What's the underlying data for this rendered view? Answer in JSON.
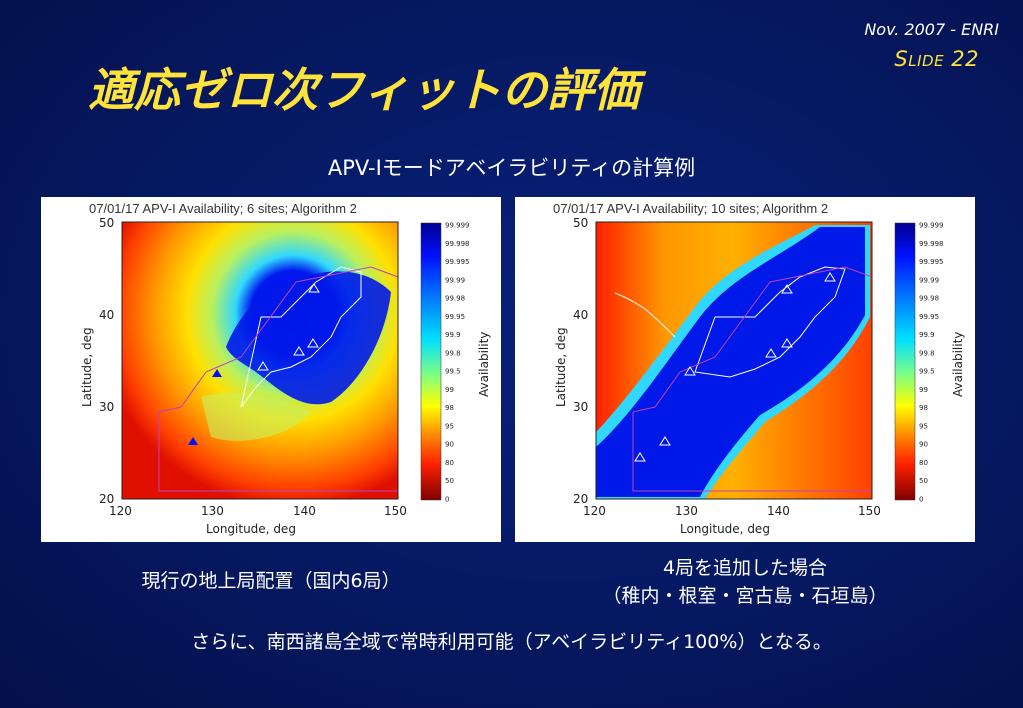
{
  "slide": {
    "date": "Nov. 2007 - ENRI",
    "number_prefix_big": "S",
    "number_prefix_small": "LIDE",
    "number_value": "22",
    "title": "適応ゼロ次フィットの評価",
    "subtitle": "APV-Iモードアベイラビリティの計算例",
    "footer": "さらに、南西諸島全域で常時利用可能（アベイラビリティ100%）となる。"
  },
  "colors": {
    "title": "#ffe23a",
    "text": "#ffffff",
    "background": "#061a66"
  },
  "panels": [
    {
      "chart_title": "07/01/17 APV-I Availability; 6 sites; Algorithm 2",
      "xlabel": "Longitude, deg",
      "ylabel": "Latitude, deg",
      "x_ticks": [
        "120",
        "130",
        "140",
        "150"
      ],
      "y_ticks": [
        "20",
        "30",
        "40",
        "50"
      ],
      "colorbar_label": "Availability",
      "colorbar_ticks": [
        "99.999",
        "99.998",
        "99.995",
        "99.99",
        "99.98",
        "99.95",
        "99.9",
        "99.8",
        "99.5",
        "99",
        "98",
        "95",
        "90",
        "80",
        "50",
        "0"
      ],
      "caption_lines": [
        "現行の地上局配置（国内6局）"
      ]
    },
    {
      "chart_title": "07/01/17 APV-I Availability; 10 sites; Algorithm 2",
      "xlabel": "Longitude, deg",
      "ylabel": "Latitude, deg",
      "x_ticks": [
        "120",
        "130",
        "140",
        "150"
      ],
      "y_ticks": [
        "20",
        "30",
        "40",
        "50"
      ],
      "colorbar_label": "Availability",
      "colorbar_ticks": [
        "99.999",
        "99.998",
        "99.995",
        "99.99",
        "99.98",
        "99.95",
        "99.9",
        "99.8",
        "99.5",
        "99",
        "98",
        "95",
        "90",
        "80",
        "50",
        "0"
      ],
      "caption_lines": [
        "4局を追加した場合",
        "（稚内・根室・宮古島・石垣島）"
      ]
    }
  ]
}
